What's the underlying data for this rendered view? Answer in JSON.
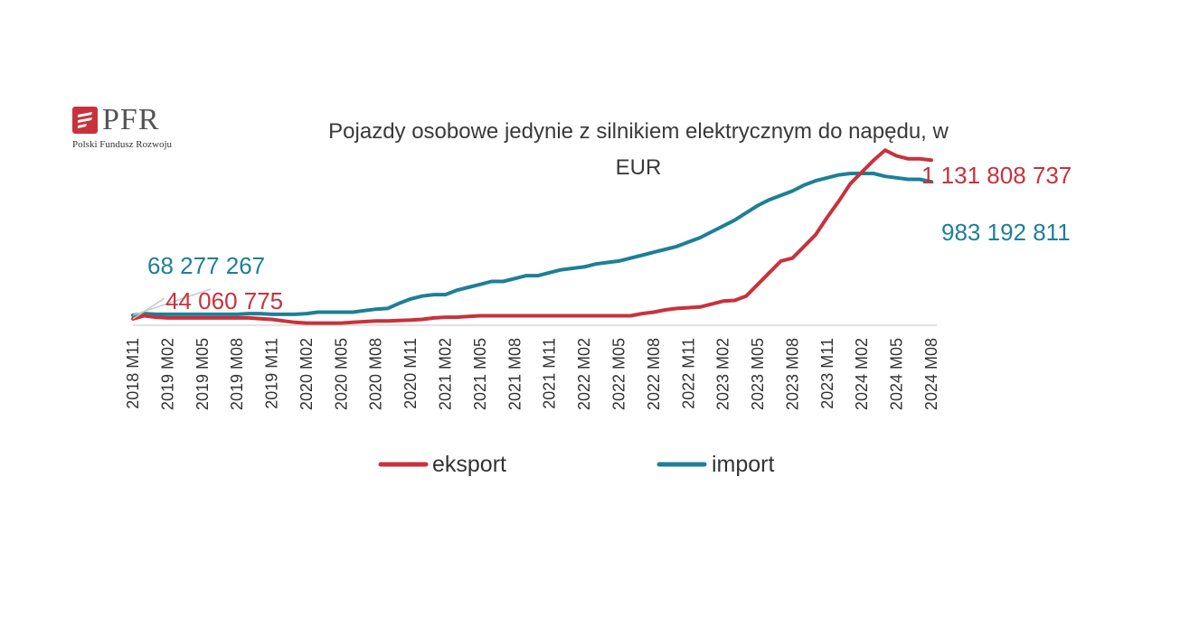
{
  "logo": {
    "name": "PFR",
    "subtitle": "Polski Fundusz Rozwoju"
  },
  "colors": {
    "eksport": "#c8323c",
    "import": "#1e7f97",
    "baseline": "#d9d9d9",
    "logo_red": "#c8323c"
  },
  "chart_data": {
    "type": "line",
    "title_line1": "Pojazdy osobowe jedynie z silnikiem elektrycznym do napędu, w",
    "title_line2": "EUR",
    "xlabel": "",
    "ylabel": "",
    "ylim": [
      0,
      1300000000
    ],
    "grid": false,
    "legend_position": "bottom",
    "categories": [
      "2018 M11",
      "2019 M02",
      "2019 M05",
      "2019 M08",
      "2019 M11",
      "2020 M02",
      "2020 M05",
      "2020 M08",
      "2020 M11",
      "2021 M02",
      "2021 M05",
      "2021 M08",
      "2021 M11",
      "2022 M02",
      "2022 M05",
      "2022 M08",
      "2022 M11",
      "2023 M02",
      "2023 M05",
      "2023 M08",
      "2023 M11",
      "2024 M02",
      "2024 M05",
      "2024 M08"
    ],
    "x": [
      "2018 M11",
      "2018 M12",
      "2019 M01",
      "2019 M02",
      "2019 M03",
      "2019 M04",
      "2019 M05",
      "2019 M06",
      "2019 M07",
      "2019 M08",
      "2019 M09",
      "2019 M10",
      "2019 M11",
      "2019 M12",
      "2020 M01",
      "2020 M02",
      "2020 M03",
      "2020 M04",
      "2020 M05",
      "2020 M06",
      "2020 M07",
      "2020 M08",
      "2020 M09",
      "2020 M10",
      "2020 M11",
      "2020 M12",
      "2021 M01",
      "2021 M02",
      "2021 M03",
      "2021 M04",
      "2021 M05",
      "2021 M06",
      "2021 M07",
      "2021 M08",
      "2021 M09",
      "2021 M10",
      "2021 M11",
      "2021 M12",
      "2022 M01",
      "2022 M02",
      "2022 M03",
      "2022 M04",
      "2022 M05",
      "2022 M06",
      "2022 M07",
      "2022 M08",
      "2022 M09",
      "2022 M10",
      "2022 M11",
      "2022 M12",
      "2023 M01",
      "2023 M02",
      "2023 M03",
      "2023 M04",
      "2023 M05",
      "2023 M06",
      "2023 M07",
      "2023 M08",
      "2023 M09",
      "2023 M10",
      "2023 M11",
      "2023 M12",
      "2024 M01",
      "2024 M02",
      "2024 M03",
      "2024 M04",
      "2024 M05",
      "2024 M06",
      "2024 M07",
      "2024 M08"
    ],
    "series": [
      {
        "name": "eksport",
        "key": "eksport",
        "values": [
          44060775,
          65000000,
          55000000,
          50000000,
          50000000,
          50000000,
          50000000,
          50000000,
          50000000,
          50000000,
          50000000,
          45000000,
          40000000,
          30000000,
          20000000,
          15000000,
          15000000,
          15000000,
          15000000,
          20000000,
          25000000,
          30000000,
          30000000,
          32000000,
          35000000,
          40000000,
          50000000,
          55000000,
          55000000,
          60000000,
          65000000,
          65000000,
          65000000,
          65000000,
          65000000,
          65000000,
          65000000,
          65000000,
          65000000,
          65000000,
          65000000,
          65000000,
          65000000,
          65000000,
          80000000,
          90000000,
          105000000,
          115000000,
          120000000,
          125000000,
          145000000,
          165000000,
          170000000,
          200000000,
          280000000,
          360000000,
          440000000,
          460000000,
          540000000,
          620000000,
          740000000,
          850000000,
          970000000,
          1050000000,
          1130000000,
          1200000000,
          1160000000,
          1140000000,
          1140000000,
          1131808737
        ]
      },
      {
        "name": "import",
        "key": "import",
        "values": [
          68277267,
          80000000,
          75000000,
          75000000,
          75000000,
          75000000,
          75000000,
          75000000,
          75000000,
          75000000,
          80000000,
          80000000,
          75000000,
          75000000,
          75000000,
          80000000,
          90000000,
          90000000,
          90000000,
          90000000,
          100000000,
          110000000,
          115000000,
          150000000,
          180000000,
          200000000,
          210000000,
          210000000,
          240000000,
          260000000,
          280000000,
          300000000,
          300000000,
          320000000,
          340000000,
          340000000,
          360000000,
          380000000,
          390000000,
          400000000,
          420000000,
          430000000,
          440000000,
          460000000,
          480000000,
          500000000,
          520000000,
          540000000,
          570000000,
          600000000,
          640000000,
          680000000,
          720000000,
          770000000,
          820000000,
          860000000,
          890000000,
          920000000,
          960000000,
          990000000,
          1010000000,
          1030000000,
          1040000000,
          1040000000,
          1040000000,
          1020000000,
          1010000000,
          1000000000,
          1000000000,
          983192811
        ]
      }
    ],
    "annotations": {
      "import_first": "68 277 267",
      "eksport_first": "44 060 775",
      "eksport_last": "1 131 808 737",
      "import_last": "983 192 811"
    }
  }
}
